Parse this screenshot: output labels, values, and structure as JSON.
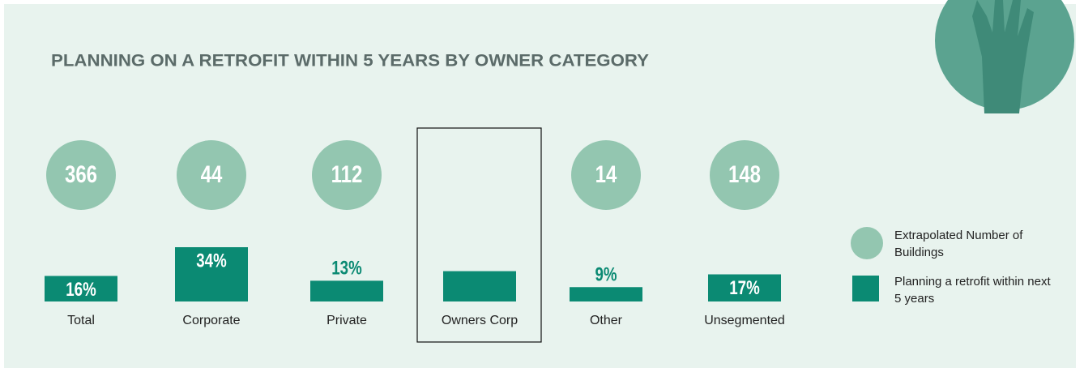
{
  "chart_data": {
    "type": "bar",
    "title": "PLANNING ON A RETROFIT WITHIN 5 YEARS BY OWNER CATEGORY",
    "categories": [
      "Total",
      "Corporate",
      "Private",
      "Owners Corp",
      "Other",
      "Unsegmented"
    ],
    "series": [
      {
        "name": "Extrapolated Number of Buildings",
        "color": "#93c6b0",
        "values": [
          366,
          44,
          112,
          null,
          14,
          148
        ]
      },
      {
        "name": "Planning a retrofit within next 5 years",
        "color": "#0b8a73",
        "values": [
          16,
          34,
          13,
          19,
          9,
          17
        ],
        "value_labels": [
          "16%",
          "34%",
          "13%",
          null,
          "9%",
          "17%"
        ]
      }
    ],
    "highlight_index": 3
  }
}
